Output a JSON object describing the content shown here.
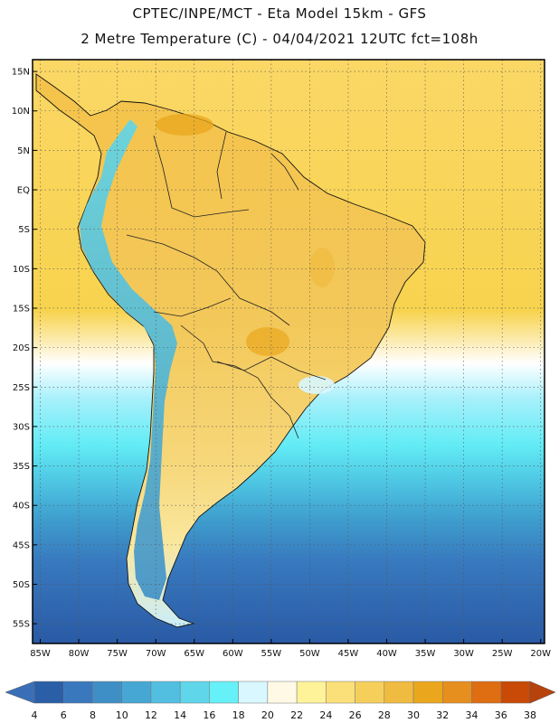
{
  "header": {
    "line1": "CPTEC/INPE/MCT -  Eta Model 15km - GFS",
    "line2": "2 Metre Temperature (C) - 04/04/2021 12UTC fct=108h"
  },
  "map": {
    "lat_labels": [
      "15N",
      "10N",
      "5N",
      "EQ",
      "5S",
      "10S",
      "15S",
      "20S",
      "25S",
      "30S",
      "35S",
      "40S",
      "45S",
      "50S",
      "55S"
    ],
    "lon_labels": [
      "85W",
      "80W",
      "75W",
      "70W",
      "65W",
      "60W",
      "55W",
      "50W",
      "45W",
      "40W",
      "35W",
      "30W",
      "25W",
      "20W"
    ],
    "lat_values": [
      15,
      10,
      5,
      0,
      -5,
      -10,
      -15,
      -20,
      -25,
      -30,
      -35,
      -40,
      -45,
      -50,
      -55
    ],
    "lon_values": [
      -85,
      -80,
      -75,
      -70,
      -65,
      -60,
      -55,
      -50,
      -45,
      -40,
      -35,
      -30,
      -25,
      -20
    ],
    "extent": {
      "lon_min": -86,
      "lon_max": -19.5,
      "lat_min": -57.5,
      "lat_max": 16.5
    }
  },
  "colorbar": {
    "labels": [
      "4",
      "6",
      "8",
      "10",
      "12",
      "14",
      "16",
      "18",
      "20",
      "22",
      "24",
      "26",
      "28",
      "30",
      "32",
      "34",
      "36",
      "38"
    ],
    "colors": [
      "#2a5fa8",
      "#3a78bd",
      "#3f8fc7",
      "#47a7d4",
      "#52bfe0",
      "#5fd6ea",
      "#66f0f7",
      "#d8f7ff",
      "#fff9e6",
      "#fff39a",
      "#fbe07a",
      "#f6cf5b",
      "#efbb40",
      "#eaa71e",
      "#e68f1e",
      "#df6d12",
      "#c84a06"
    ],
    "low_color": "#3a6fb8",
    "high_color": "#b8420c"
  }
}
